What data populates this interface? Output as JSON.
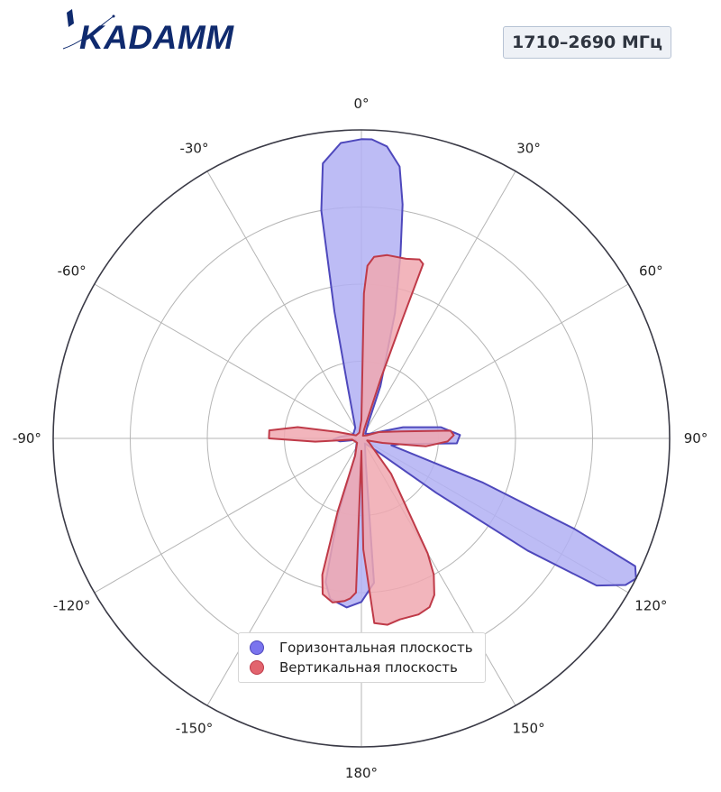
{
  "logo": {
    "text": "KADAMM"
  },
  "badge": {
    "label": "1710–2690 МГц"
  },
  "colors": {
    "horizontal_fill": "#b2b0f3",
    "horizontal_edge": "#4e48bc",
    "vertical_fill": "#f0a8b0",
    "vertical_edge": "#bf3a48",
    "frame": "#3a3a46",
    "grid": "#b5b5b5"
  },
  "chart_data": {
    "type": "polar-area",
    "title": "",
    "angle_ticks": [
      "0°",
      "30°",
      "60°",
      "90°",
      "120°",
      "150°",
      "180°",
      "-150°",
      "-120°",
      "-90°",
      "-60°",
      "-30°"
    ],
    "angle_values": [
      0,
      30,
      60,
      90,
      120,
      150,
      180,
      210,
      240,
      270,
      300,
      330
    ],
    "radial_grid": [
      0.25,
      0.5,
      0.75,
      1.0
    ],
    "rlim": [
      0,
      1
    ],
    "legend_position": "bottom-center",
    "grid": true,
    "series": [
      {
        "name": "Горизонтальная плоскость",
        "color": "#7a74ee",
        "points": [
          [
            0,
            0.97
          ],
          [
            2,
            0.97
          ],
          [
            5,
            0.95
          ],
          [
            8,
            0.89
          ],
          [
            10,
            0.77
          ],
          [
            12,
            0.61
          ],
          [
            15,
            0.42
          ],
          [
            20,
            0.18
          ],
          [
            25,
            0.05
          ],
          [
            40,
            0.02
          ],
          [
            60,
            0.03
          ],
          [
            75,
            0.14
          ],
          [
            82,
            0.26
          ],
          [
            88,
            0.32
          ],
          [
            93,
            0.31
          ],
          [
            98,
            0.13
          ],
          [
            103,
            0.1
          ],
          [
            110,
            0.42
          ],
          [
            113,
            0.75
          ],
          [
            115,
            0.98
          ],
          [
            117,
            1.0
          ],
          [
            119,
            0.98
          ],
          [
            122,
            0.9
          ],
          [
            124,
            0.65
          ],
          [
            126,
            0.3
          ],
          [
            130,
            0.06
          ],
          [
            145,
            0.02
          ],
          [
            170,
            0.08
          ],
          [
            175,
            0.47
          ],
          [
            180,
            0.53
          ],
          [
            185,
            0.55
          ],
          [
            191,
            0.53
          ],
          [
            194,
            0.48
          ],
          [
            197,
            0.26
          ],
          [
            200,
            0.06
          ],
          [
            230,
            0.02
          ],
          [
            255,
            0.02
          ],
          [
            262,
            0.07
          ],
          [
            268,
            0.09
          ],
          [
            274,
            0.07
          ],
          [
            285,
            0.04
          ],
          [
            300,
            0.03
          ],
          [
            330,
            0.04
          ],
          [
            345,
            0.17
          ],
          [
            348,
            0.42
          ],
          [
            350,
            0.75
          ],
          [
            352,
            0.9
          ],
          [
            356,
            0.96
          ]
        ]
      },
      {
        "name": "Вертикальная плоскость",
        "color": "#e2646e",
        "points": [
          [
            0,
            0.06
          ],
          [
            1,
            0.47
          ],
          [
            2,
            0.56
          ],
          [
            4,
            0.59
          ],
          [
            8,
            0.6
          ],
          [
            14,
            0.6
          ],
          [
            18,
            0.61
          ],
          [
            19.5,
            0.6
          ],
          [
            19,
            0.4
          ],
          [
            18,
            0.2
          ],
          [
            17,
            0.03
          ],
          [
            30,
            0.01
          ],
          [
            60,
            0.02
          ],
          [
            70,
            0.06
          ],
          [
            80,
            0.13
          ],
          [
            85,
            0.29
          ],
          [
            88,
            0.3
          ],
          [
            92,
            0.28
          ],
          [
            97,
            0.21
          ],
          [
            102,
            0.07
          ],
          [
            110,
            0.02
          ],
          [
            120,
            0.03
          ],
          [
            140,
            0.15
          ],
          [
            150,
            0.43
          ],
          [
            152,
            0.5
          ],
          [
            155,
            0.56
          ],
          [
            158,
            0.59
          ],
          [
            162,
            0.6
          ],
          [
            168,
            0.6
          ],
          [
            172,
            0.61
          ],
          [
            176,
            0.6
          ],
          [
            179,
            0.36
          ],
          [
            180,
            0.04
          ],
          [
            182,
            0.5
          ],
          [
            184,
            0.52
          ],
          [
            186,
            0.53
          ],
          [
            190,
            0.54
          ],
          [
            194,
            0.52
          ],
          [
            196,
            0.46
          ],
          [
            198,
            0.25
          ],
          [
            200,
            0.06
          ],
          [
            225,
            0.02
          ],
          [
            262,
            0.03
          ],
          [
            266,
            0.15
          ],
          [
            270,
            0.3
          ],
          [
            275,
            0.3
          ],
          [
            280,
            0.21
          ],
          [
            285,
            0.08
          ],
          [
            300,
            0.02
          ],
          [
            340,
            0.02
          ],
          [
            355,
            0.04
          ]
        ]
      }
    ]
  }
}
